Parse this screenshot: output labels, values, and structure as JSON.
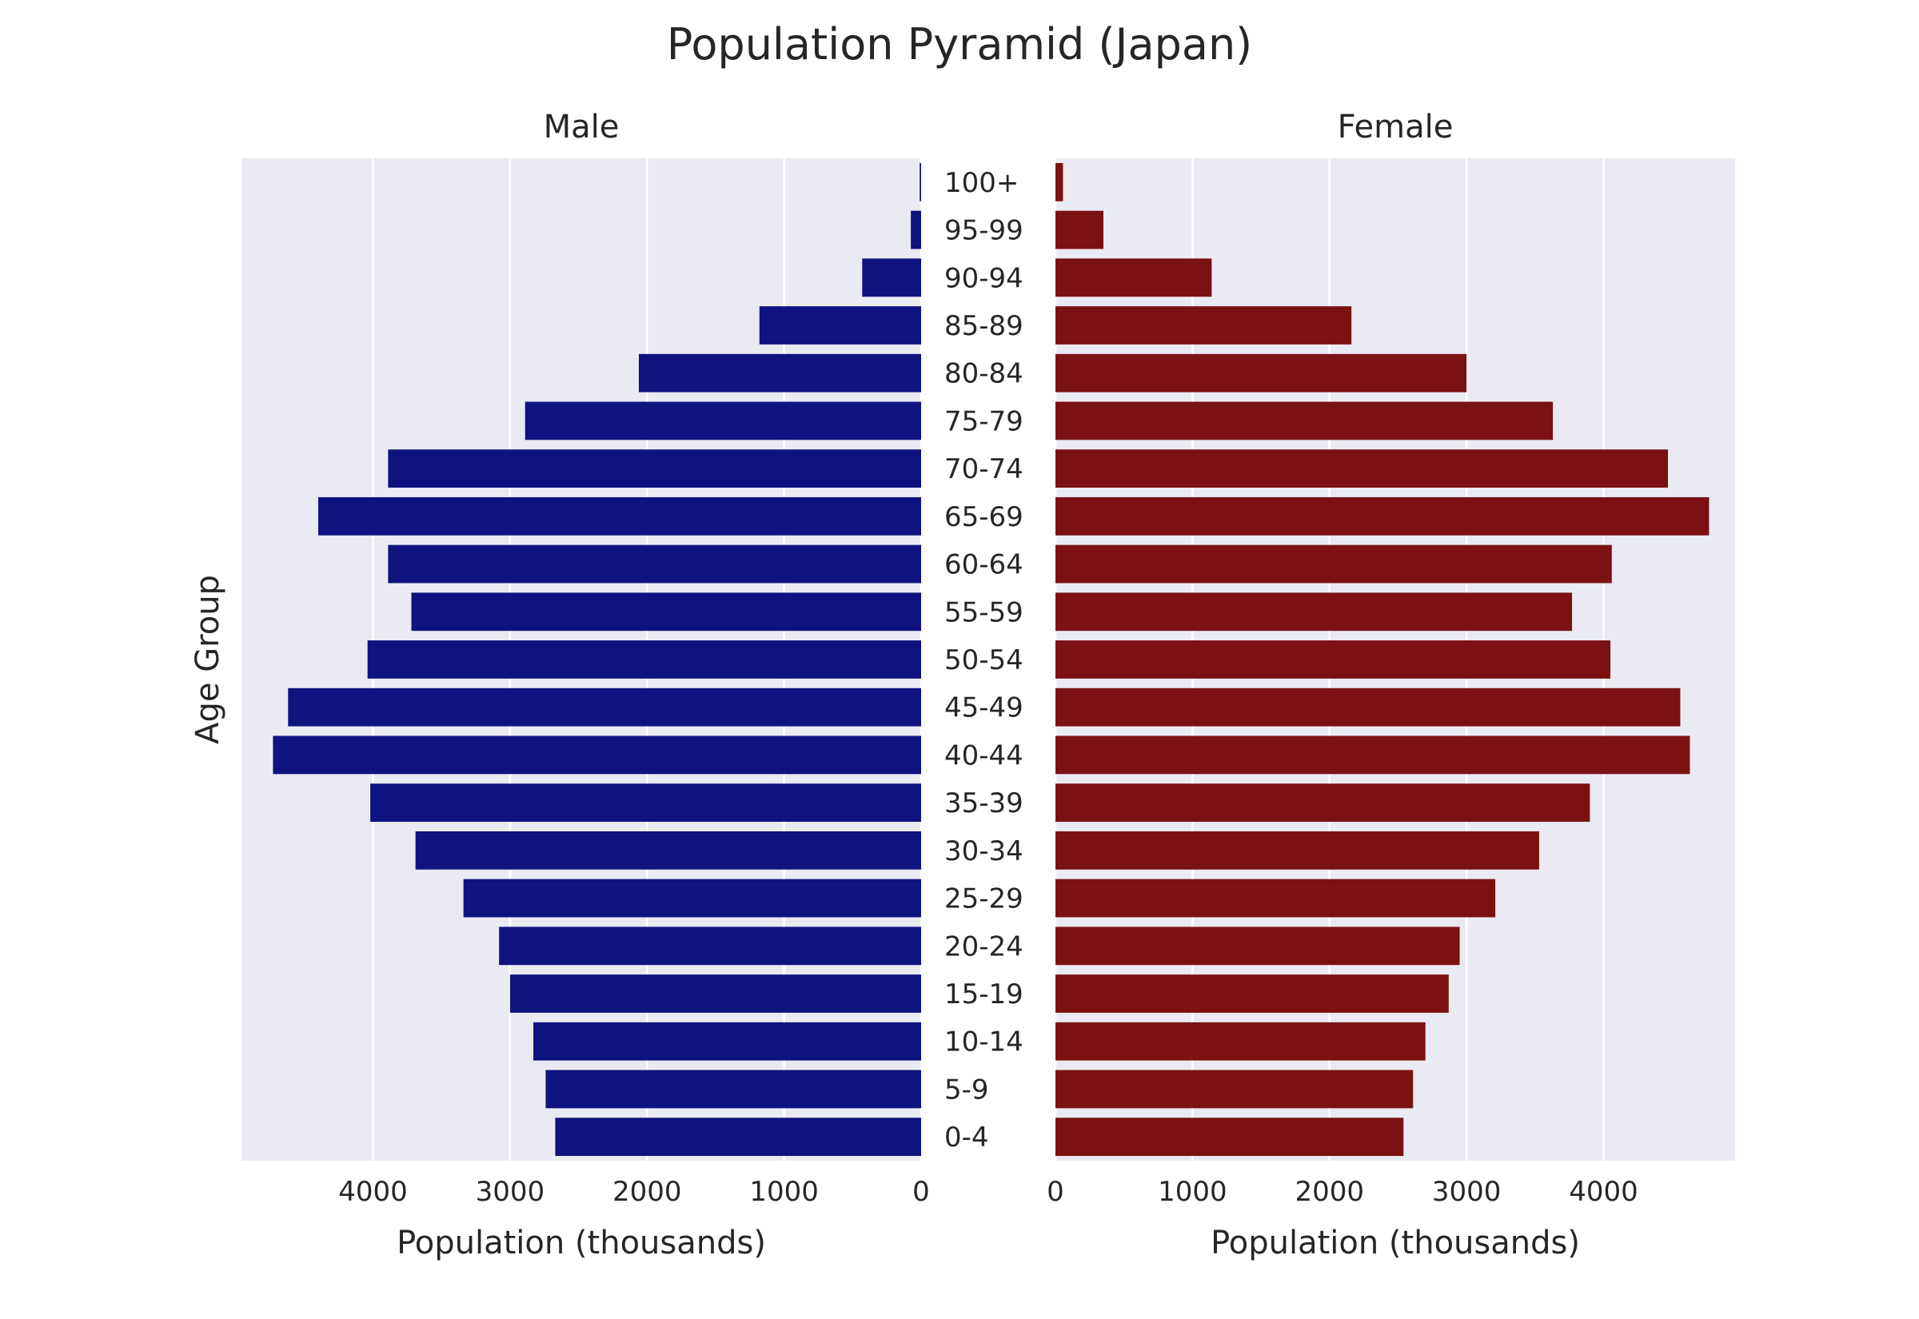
{
  "chart_data": {
    "type": "bar",
    "orientation": "horizontal",
    "layout": "population-pyramid",
    "title": "Population Pyramid (Japan)",
    "ylabel": "Age Group",
    "categories": [
      "100+",
      "95-99",
      "90-94",
      "85-89",
      "80-84",
      "75-79",
      "70-74",
      "65-69",
      "60-64",
      "55-59",
      "50-54",
      "45-49",
      "40-44",
      "35-39",
      "30-34",
      "25-29",
      "20-24",
      "15-19",
      "10-14",
      "5-9",
      "0-4"
    ],
    "panels": [
      {
        "name": "Male",
        "xlabel": "Population (thousands)",
        "color": "#10127f",
        "direction": "reversed",
        "xlim": [
          0,
          4960
        ],
        "xticks": [
          4000,
          3000,
          2000,
          1000,
          0
        ],
        "values": [
          10,
          75,
          430,
          1180,
          2060,
          2890,
          3890,
          4400,
          3890,
          3720,
          4040,
          4620,
          4730,
          4020,
          3690,
          3340,
          3080,
          3000,
          2830,
          2740,
          2670
        ]
      },
      {
        "name": "Female",
        "xlabel": "Population (thousands)",
        "color": "#7b1112",
        "direction": "normal",
        "xlim": [
          0,
          4960
        ],
        "xticks": [
          0,
          1000,
          2000,
          3000,
          4000
        ],
        "values": [
          55,
          350,
          1140,
          2160,
          3000,
          3630,
          4470,
          4770,
          4060,
          3770,
          4050,
          4560,
          4630,
          3900,
          3530,
          3210,
          2950,
          2870,
          2700,
          2610,
          2540
        ]
      }
    ],
    "grid": true,
    "gridAxis": "x"
  }
}
